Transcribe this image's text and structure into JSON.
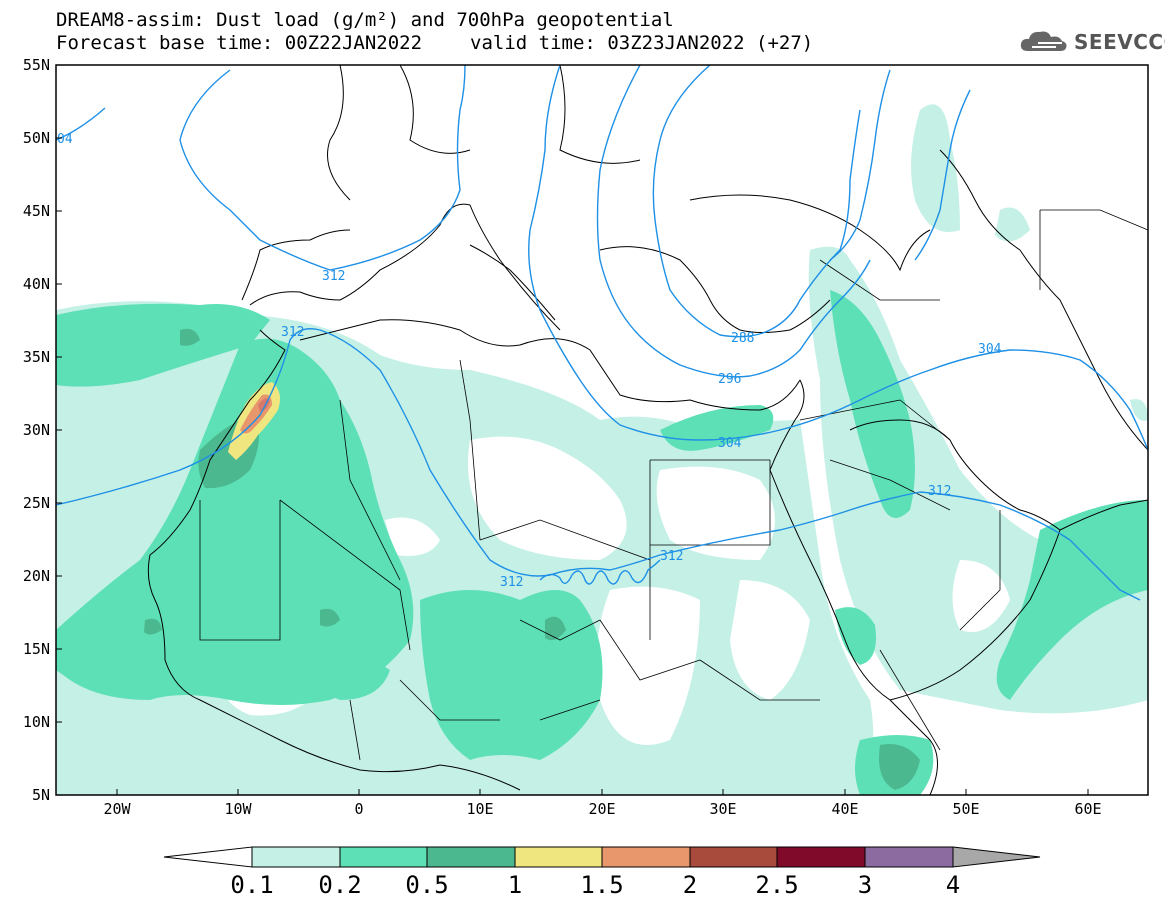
{
  "header": {
    "title_line1": "DREAM8-assim: Dust load (g/m²) and 700hPa geopotential",
    "forecast_base": "Forecast base time: 00Z22JAN2022",
    "valid_time": "valid time: 03Z23JAN2022 (+27)"
  },
  "logo": {
    "text": "SEEVCCC",
    "icon": "cloud-icon"
  },
  "map": {
    "lat_labels": [
      "55N",
      "50N",
      "45N",
      "40N",
      "35N",
      "30N",
      "25N",
      "20N",
      "15N",
      "10N",
      "5N"
    ],
    "lon_labels": [
      "20W",
      "10W",
      "0",
      "10E",
      "20E",
      "30E",
      "40E",
      "50E",
      "60E"
    ],
    "contour_labels": [
      "312",
      "312",
      "288",
      "296",
      "304",
      "304",
      "312",
      "312",
      "312"
    ],
    "partial_label": "04",
    "colors": {
      "contour": "#1e90e6",
      "coast": "#000000"
    }
  },
  "colorbar": {
    "tick_labels": [
      "0.1",
      "0.2",
      "0.5",
      "1",
      "1.5",
      "2",
      "2.5",
      "3",
      "4"
    ],
    "colors": [
      "#ffffff",
      "#c4f0e6",
      "#5ee0b6",
      "#4cb890",
      "#f0e680",
      "#e8966c",
      "#a84a3c",
      "#800a2a",
      "#8c6ca0",
      "#a8a8a8"
    ]
  }
}
